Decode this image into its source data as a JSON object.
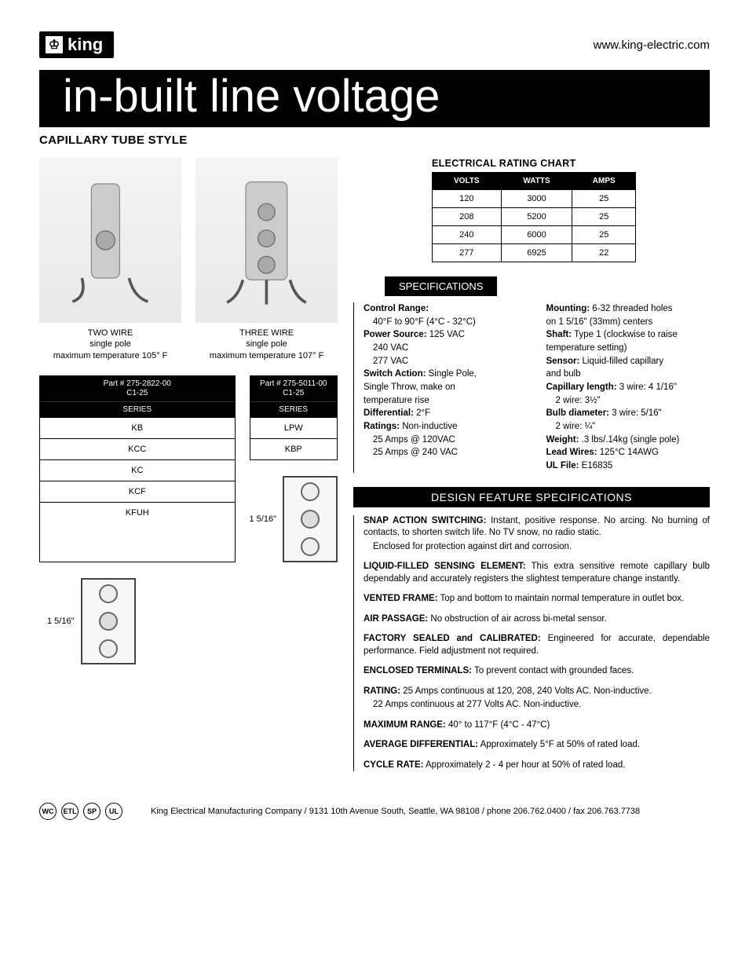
{
  "header": {
    "brand": "king",
    "url": "www.king-electric.com"
  },
  "title": "in-built line voltage",
  "subhead": "CAPILLARY TUBE STYLE",
  "products": [
    {
      "label_line1": "TWO WIRE",
      "label_line2": "single pole",
      "label_line3": "maximum temperature 105° F"
    },
    {
      "label_line1": "THREE WIRE",
      "label_line2": "single pole",
      "label_line3": "maximum temperature 107° F"
    }
  ],
  "series_tables": [
    {
      "part_line1": "Part # 275-2822-00",
      "part_line2": "C1-25",
      "series_label": "SERIES",
      "rows": [
        "KB",
        "KCC",
        "KC",
        "KCF",
        "KFUH"
      ]
    },
    {
      "part_line1": "Part # 275-5011-00",
      "part_line2": "C1-25",
      "series_label": "SERIES",
      "rows": [
        "LPW",
        "KBP"
      ]
    }
  ],
  "dimension_label": "1 5/16\"",
  "rating_chart": {
    "title": "ELECTRICAL RATING CHART",
    "headers": [
      "VOLTS",
      "WATTS",
      "AMPS"
    ],
    "rows": [
      [
        "120",
        "3000",
        "25"
      ],
      [
        "208",
        "5200",
        "25"
      ],
      [
        "240",
        "6000",
        "25"
      ],
      [
        "277",
        "6925",
        "22"
      ]
    ],
    "header_bg": "#000000",
    "border_color": "#000000"
  },
  "specifications": {
    "header": "SPECIFICATIONS",
    "left": [
      {
        "label": "Control Range:",
        "lines": [
          "40°F to 90°F (4°C - 32°C)"
        ]
      },
      {
        "label": "Power Source:",
        "inline": "125 VAC",
        "lines": [
          "240 VAC",
          "277 VAC"
        ]
      },
      {
        "label": "Switch Action:",
        "inline": "Single Pole,",
        "lines": [
          "Single Throw, make on",
          "temperature rise"
        ],
        "no_indent_extra": true
      },
      {
        "label": "Differential:",
        "inline": "2°F"
      },
      {
        "label": "Ratings:",
        "inline": "Non-inductive",
        "lines": [
          "25 Amps @ 120VAC",
          "25 Amps @ 240 VAC"
        ]
      }
    ],
    "right": [
      {
        "label": "Mounting:",
        "inline": "6-32 threaded holes",
        "lines": [
          "on 1 5/16\" (33mm) centers"
        ],
        "no_indent_extra": true
      },
      {
        "label": "Shaft:",
        "inline": "Type 1 (clockwise to raise",
        "lines": [
          "temperature setting)"
        ],
        "no_indent_extra": true
      },
      {
        "label": "Sensor:",
        "inline": "Liquid-filled capillary",
        "lines": [
          "and bulb"
        ],
        "no_indent_extra": true
      },
      {
        "label": "Capillary length:",
        "inline": "3 wire: 4 1/16\"",
        "lines": [
          "2 wire: 3½\""
        ]
      },
      {
        "label": "Bulb diameter:",
        "inline": "3 wire: 5/16\"",
        "lines": [
          "2 wire: ¼\""
        ]
      },
      {
        "label": "Weight:",
        "inline": ".3 lbs/.14kg (single pole)"
      },
      {
        "label": "Lead Wires:",
        "inline": "125°C 14AWG"
      },
      {
        "label": "UL File:",
        "inline": "E16835"
      }
    ]
  },
  "design": {
    "header": "DESIGN FEATURE SPECIFICATIONS",
    "items": [
      {
        "label": "SNAP ACTION SWITCHING:",
        "text": " Instant, positive response. No arcing. No burning of contacts, to shorten switch life. No TV snow, no radio static.",
        "sub": "Enclosed for protection against dirt and corrosion."
      },
      {
        "label": "LIQUID-FILLED SENSING ELEMENT:",
        "text": " This extra sensitive remote capillary bulb dependably and accurately registers the slightest temperature change instantly."
      },
      {
        "label": "VENTED FRAME:",
        "text": " Top and bottom to maintain normal temperature in outlet box."
      },
      {
        "label": "AIR PASSAGE:",
        "text": " No obstruction of air across bi-metal sensor."
      },
      {
        "label": "FACTORY SEALED and CALIBRATED:",
        "text": " Engineered for accurate, dependable performance. Field adjustment not required."
      },
      {
        "label": "ENCLOSED TERMINALS:",
        "text": " To prevent contact with grounded faces."
      },
      {
        "label": "RATING:",
        "text": " 25 Amps continuous at 120, 208, 240 Volts AC. Non-inductive.",
        "sub": "22 Amps continuous at 277 Volts AC. Non-inductive."
      },
      {
        "label": "MAXIMUM RANGE:",
        "text": " 40° to 117°F (4°C -  47°C)"
      },
      {
        "label": "AVERAGE DIFFERENTIAL:",
        "text": " Approximately 5°F at 50% of rated load."
      },
      {
        "label": "CYCLE RATE:",
        "text": " Approximately 2 - 4 per hour at 50% of rated load."
      }
    ]
  },
  "footer": {
    "certs": [
      "WC",
      "ETL",
      "SP",
      "UL"
    ],
    "text": "King Electrical Manufacturing Company   /  9131 10th Avenue South, Seattle, WA 98108  /   phone 206.762.0400   /   fax 206.763.7738"
  }
}
